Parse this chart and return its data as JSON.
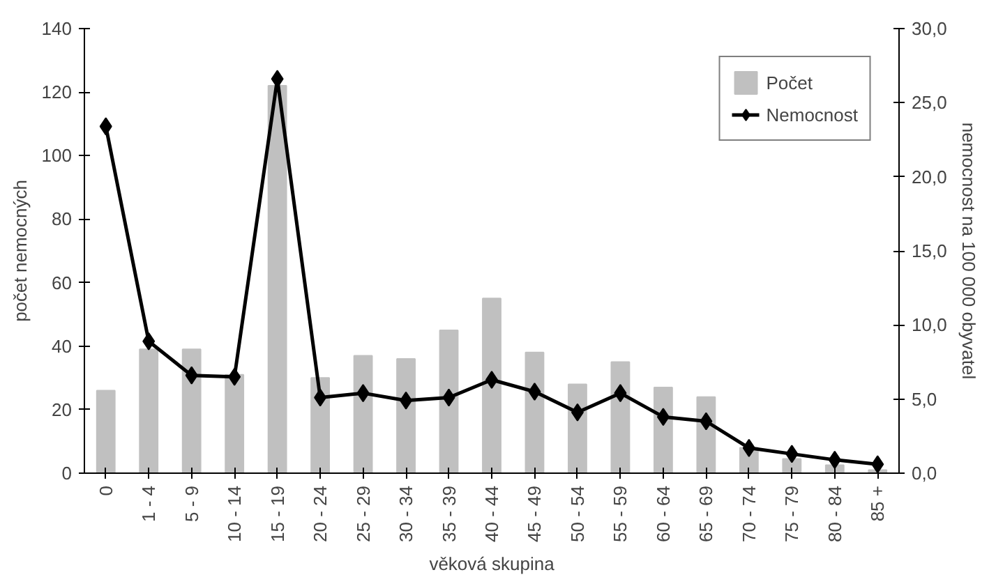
{
  "chart_data": {
    "type": "bar",
    "xlabel": "věková skupina",
    "ylabel": "počet nemocných",
    "y2label": "nemocnost na 100 000 obyvatel",
    "categories": [
      "0",
      "1 - 4",
      "5 - 9",
      "10 - 14",
      "15 - 19",
      "20 - 24",
      "25 - 29",
      "30 - 34",
      "35 - 39",
      "40 - 44",
      "45 - 49",
      "50 - 54",
      "55 - 59",
      "60 - 64",
      "65 - 69",
      "70 - 74",
      "75 - 79",
      "80 - 84",
      "85 +"
    ],
    "series": [
      {
        "name": "Počet",
        "color": "#c0c0c0",
        "values": [
          26,
          39,
          39,
          31,
          122,
          30,
          37,
          36,
          45,
          55,
          38,
          28,
          35,
          27,
          24,
          8,
          4.5,
          2.5,
          1
        ]
      },
      {
        "name": "Nemocnost",
        "type": "line",
        "axis": "y2",
        "color": "#000000",
        "marker": "diamond",
        "values": [
          23.4,
          8.9,
          6.6,
          6.5,
          26.6,
          5.1,
          5.4,
          4.9,
          5.1,
          6.3,
          5.5,
          4.1,
          5.4,
          3.8,
          3.5,
          1.7,
          1.3,
          0.9,
          0.6
        ]
      }
    ],
    "ylim": [
      0,
      140
    ],
    "yticks": [
      0,
      20,
      40,
      60,
      80,
      100,
      120,
      140
    ],
    "y2lim": [
      0,
      30
    ],
    "y2ticks": [
      {
        "value": 0,
        "label": "0,0"
      },
      {
        "value": 5,
        "label": "5,0"
      },
      {
        "value": 10,
        "label": "10,0"
      },
      {
        "value": 15,
        "label": "15,0"
      },
      {
        "value": 20,
        "label": "20,0"
      },
      {
        "value": 25,
        "label": "25,0"
      },
      {
        "value": 30,
        "label": "30,0"
      }
    ],
    "grid": false,
    "legend": "top right"
  }
}
